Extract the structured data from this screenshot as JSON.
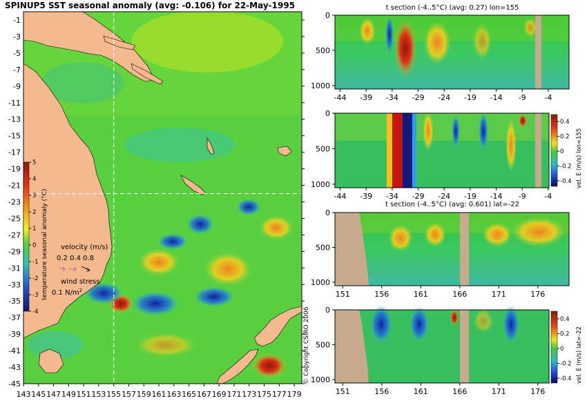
{
  "chart_data": [
    {
      "type": "heatmap",
      "title": "SPINUP5 SST seasonal anomaly (avg: -0.106) for 22-May-1995",
      "y_ticks": [
        "-1",
        "-3",
        "-5",
        "-7",
        "-9",
        "-11",
        "-13",
        "-15",
        "-17",
        "-19",
        "-21",
        "-23",
        "-25",
        "-27",
        "-29",
        "-31",
        "-33",
        "-35",
        "-37",
        "-39",
        "-41",
        "-43",
        "-45"
      ],
      "x_ticks": [
        "143",
        "145",
        "147",
        "149",
        "151",
        "153",
        "155",
        "157",
        "159",
        "161",
        "163",
        "165",
        "167",
        "169",
        "171",
        "173",
        "175",
        "177",
        "179"
      ],
      "ylim": [
        -45,
        0
      ],
      "xlim": [
        143,
        180
      ],
      "crosshair": {
        "lon": 155,
        "lat": -22
      },
      "colorbar": {
        "label": "temperature seasonal anomaly (°C)",
        "ticks": [
          "5",
          "4",
          "3",
          "2",
          "1",
          "0",
          "-1",
          "-2",
          "-3",
          "-4"
        ],
        "range": [
          -4,
          5
        ]
      },
      "legend": {
        "velocity_label": "velocity (m/s)",
        "velocity_scale": "0.2 0.4 0.8",
        "wind_label": "wind stress",
        "wind_scale": "0.1 N/m",
        "wind_unit_sup": "2"
      },
      "copyright": "© Copyright CSIRO 2006"
    },
    {
      "type": "heatmap",
      "title": "t section (-4..5°C) (avg: 0.27) lon=155",
      "x_ticks": [
        "-44",
        "-39",
        "-34",
        "-29",
        "-24",
        "-19",
        "-14",
        "-9",
        "-4"
      ],
      "y_ticks": [
        "0",
        "500",
        "1000"
      ],
      "xlim": [
        -45,
        0
      ],
      "ylim": [
        1050,
        0
      ]
    },
    {
      "type": "heatmap",
      "title": "",
      "x_ticks": [
        "-44",
        "-39",
        "-34",
        "-29",
        "-24",
        "-19",
        "-14",
        "-9",
        "-4"
      ],
      "y_ticks": [
        "0",
        "500",
        "1000"
      ],
      "xlim": [
        -45,
        0
      ],
      "ylim": [
        1050,
        0
      ],
      "colorbar": {
        "label": "vel. E (m/s) lon=155",
        "ticks": [
          "0.4",
          "0.2",
          "0",
          "-0.2",
          "-0.4"
        ]
      }
    },
    {
      "type": "heatmap",
      "title": "t section (-4..5°C) (avg: 0.601) lat=-22",
      "x_ticks": [
        "151",
        "156",
        "161",
        "166",
        "171",
        "176"
      ],
      "y_ticks": [
        "0",
        "500",
        "1000"
      ],
      "xlim": [
        150,
        180
      ],
      "ylim": [
        1050,
        0
      ]
    },
    {
      "type": "heatmap",
      "title": "",
      "x_ticks": [
        "151",
        "156",
        "161",
        "166",
        "171",
        "176"
      ],
      "y_ticks": [
        "0",
        "500",
        "1000"
      ],
      "xlim": [
        150,
        180
      ],
      "ylim": [
        1050,
        0
      ],
      "colorbar": {
        "label": "vel. E (m/s) lat=-22",
        "ticks": [
          "0.4",
          "0.2",
          "0",
          "-0.2",
          "-0.4"
        ]
      }
    }
  ]
}
